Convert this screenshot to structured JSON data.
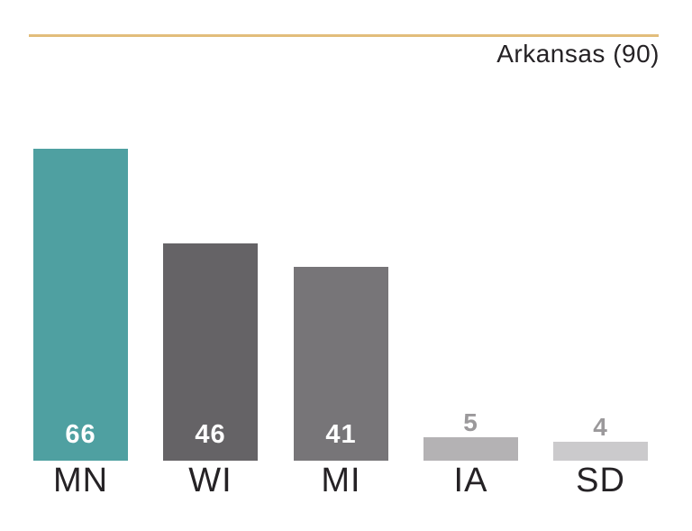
{
  "chart_data": {
    "type": "bar",
    "categories": [
      "MN",
      "WI",
      "MI",
      "IA",
      "SD"
    ],
    "values": [
      66,
      46,
      41,
      5,
      4
    ],
    "title": "",
    "xlabel": "",
    "ylabel": "",
    "ylim": [
      0,
      90
    ],
    "grid": false,
    "legend_position": "none",
    "bar_colors": [
      "#4FA0A1",
      "#656366",
      "#777578",
      "#B4B2B4",
      "#CBCACC"
    ],
    "value_label_placement": [
      "inside",
      "inside",
      "inside",
      "above",
      "above"
    ],
    "value_label_colors": [
      "#FFFFFF",
      "#FFFFFF",
      "#FFFFFF",
      "#9B999B",
      "#9B999B"
    ],
    "reference_line": {
      "label": "Arkansas (90)",
      "value": 90,
      "color": "#E2BD7B"
    }
  },
  "colors": {
    "background": "#FFFFFF",
    "label_text": "#252225",
    "muted_value_text": "#9B999B"
  }
}
